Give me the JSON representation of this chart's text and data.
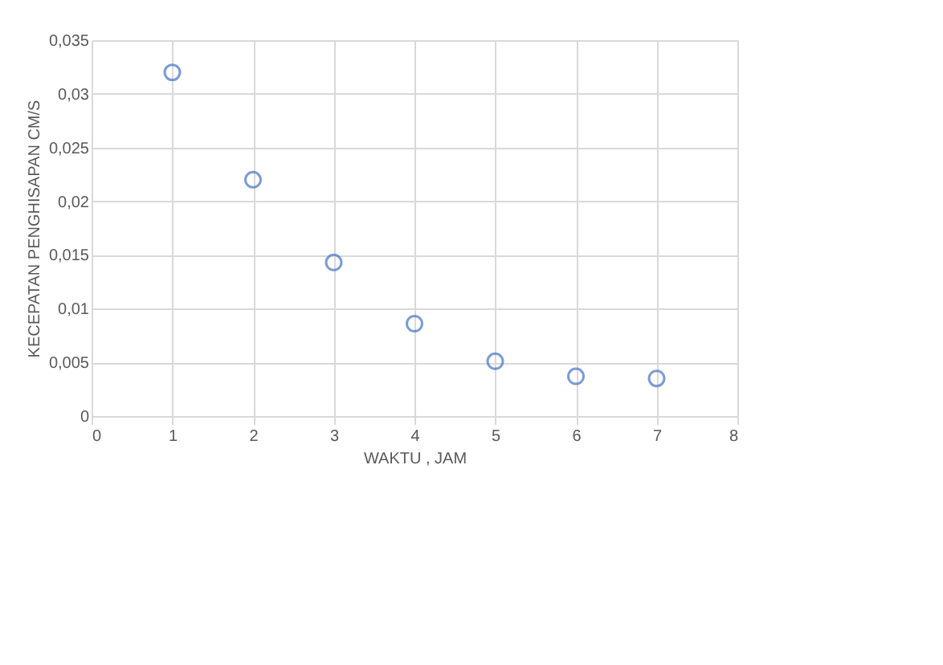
{
  "chart_data": {
    "type": "scatter",
    "xlabel": "WAKTU , JAM",
    "ylabel": "KECEPATAN PENGHISAPAN CM/S",
    "x": [
      1,
      2,
      3,
      4,
      5,
      6,
      7
    ],
    "series": [
      {
        "color": "#4472c4",
        "values": [
          0.032,
          0.022,
          0.0143,
          0.0086,
          0.0051,
          0.0037,
          0.0035
        ]
      }
    ],
    "xlim": [
      0,
      8
    ],
    "xticks": [
      0,
      1,
      2,
      3,
      4,
      5,
      6,
      7,
      8
    ],
    "ylim": [
      0,
      0.035
    ],
    "yticks": [
      0,
      {
        "value": 0.005,
        "label": "0,005"
      },
      {
        "value": 0.01,
        "label": "0,01"
      },
      {
        "value": 0.015,
        "label": "0,015"
      },
      {
        "value": 0.02,
        "label": "0,02"
      },
      {
        "value": 0.025,
        "label": "0,025"
      },
      {
        "value": 0.03,
        "label": "0,03"
      },
      {
        "value": 0.035,
        "label": "0,035"
      }
    ],
    "grid": true,
    "marker": "circle",
    "legend": false
  }
}
